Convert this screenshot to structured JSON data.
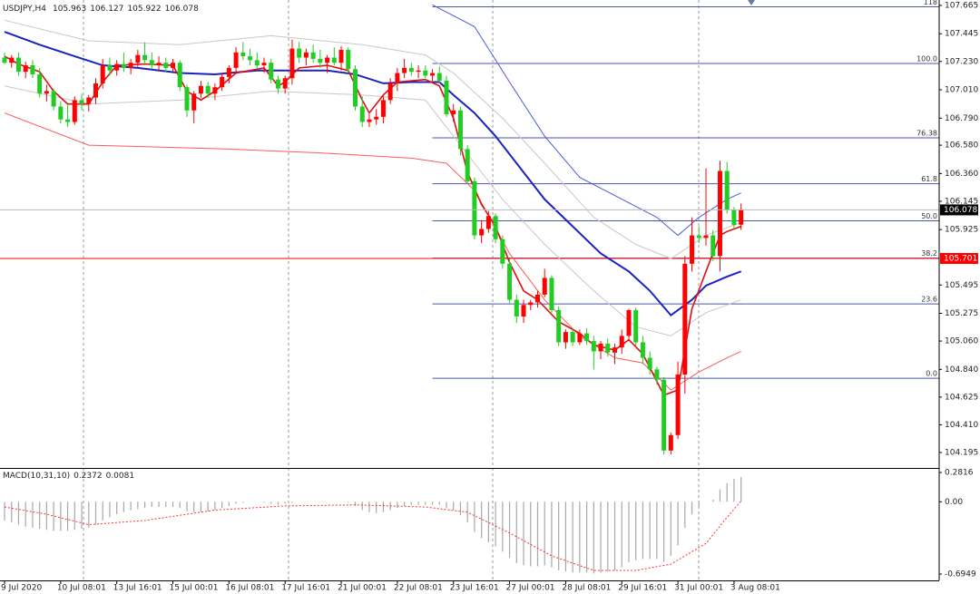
{
  "chart_data": [
    {
      "type": "candlestick",
      "title": "USDJPY,H4",
      "categories": [
        "9 Jul 2020",
        null,
        null,
        null,
        null,
        null,
        null,
        null,
        "10 Jul 08:01",
        null,
        null,
        null,
        null,
        null,
        null,
        null,
        "13 Jul 16:01",
        null,
        null,
        null,
        null,
        null,
        null,
        null,
        "15 Jul 00:01",
        null,
        null,
        null,
        null,
        null,
        null,
        null,
        "16 Jul 08:01",
        null,
        null,
        null,
        null,
        null,
        null,
        null,
        "17 Jul 16:01",
        null,
        null,
        null,
        null,
        null,
        null,
        null,
        "21 Jul 00:01",
        null,
        null,
        null,
        null,
        null,
        null,
        null,
        "22 Jul 08:01",
        null,
        null,
        null,
        null,
        null,
        null,
        null,
        "23 Jul 16:01",
        null,
        null,
        null,
        null,
        null,
        null,
        null,
        "27 Jul 00:01",
        null,
        null,
        null,
        null,
        null,
        null,
        null,
        "28 Jul 08:01",
        null,
        null,
        null,
        null,
        null,
        null,
        null,
        "29 Jul 16:01",
        null,
        null,
        null,
        null,
        null,
        null,
        null,
        "31 Jul 00:01",
        null,
        null,
        null,
        null,
        null,
        null,
        null,
        "3 Aug 08:01",
        null
      ],
      "open": [
        107.26,
        107.22,
        107.26,
        107.15,
        107.2,
        107.13,
        106.98,
        107.0,
        106.88,
        106.78,
        106.76,
        106.93,
        106.9,
        106.95,
        107.06,
        107.2,
        107.16,
        107.21,
        107.18,
        107.22,
        107.28,
        107.24,
        107.2,
        107.22,
        107.18,
        107.22,
        107.03,
        106.85,
        106.98,
        107.04,
        106.98,
        107.03,
        107.11,
        107.18,
        107.3,
        107.27,
        107.24,
        107.2,
        107.22,
        107.09,
        107.02,
        107.1,
        107.33,
        107.26,
        107.3,
        107.25,
        107.22,
        107.26,
        107.22,
        107.32,
        107.17,
        106.88,
        106.76,
        106.78,
        106.8,
        106.93,
        107.06,
        107.14,
        107.18,
        107.15,
        107.16,
        107.12,
        107.14,
        107.08,
        106.82,
        106.85,
        106.55,
        106.3,
        105.88,
        105.93,
        106.03,
        105.85,
        105.66,
        105.38,
        105.25,
        105.34,
        105.36,
        105.42,
        105.55,
        105.3,
        105.05,
        105.13,
        105.05,
        105.12,
        105.06,
        104.98,
        105.04,
        104.97,
        105.01,
        105.1,
        105.3,
        105.05,
        104.93,
        104.84,
        104.76,
        104.21,
        104.33,
        104.8,
        105.66,
        105.88,
        105.86,
        105.88,
        105.72,
        106.38,
        106.08,
        105.963
      ],
      "high": [
        107.3,
        107.28,
        107.3,
        107.23,
        107.24,
        107.18,
        107.05,
        107.02,
        106.92,
        106.9,
        106.96,
        106.98,
        106.97,
        107.1,
        107.25,
        107.26,
        107.24,
        107.3,
        107.25,
        107.32,
        107.38,
        107.3,
        107.27,
        107.26,
        107.25,
        107.24,
        107.05,
        107.0,
        107.08,
        107.07,
        107.06,
        107.14,
        107.2,
        107.34,
        107.38,
        107.33,
        107.3,
        107.26,
        107.25,
        107.12,
        107.12,
        107.4,
        107.38,
        107.33,
        107.36,
        107.32,
        107.28,
        107.34,
        107.35,
        107.34,
        107.2,
        106.96,
        106.82,
        106.86,
        106.96,
        107.1,
        107.18,
        107.25,
        107.22,
        107.2,
        107.2,
        107.17,
        107.19,
        107.12,
        106.9,
        106.88,
        106.58,
        106.33,
        106.0,
        106.07,
        106.05,
        105.88,
        105.7,
        105.42,
        105.38,
        105.38,
        105.45,
        105.62,
        105.57,
        105.33,
        105.15,
        105.16,
        105.15,
        105.16,
        105.1,
        105.06,
        105.08,
        105.04,
        105.15,
        105.31,
        105.32,
        105.1,
        104.98,
        104.86,
        104.78,
        104.35,
        104.9,
        105.72,
        106.02,
        105.95,
        106.4,
        105.92,
        106.46,
        106.45,
        106.1,
        106.127
      ],
      "low": [
        107.21,
        107.18,
        107.12,
        107.1,
        107.1,
        106.95,
        106.92,
        106.85,
        106.75,
        106.72,
        106.74,
        106.85,
        106.84,
        106.9,
        107.02,
        107.12,
        107.12,
        107.15,
        107.13,
        107.18,
        107.2,
        107.17,
        107.16,
        107.15,
        107.15,
        107.0,
        106.8,
        106.75,
        106.95,
        106.95,
        106.93,
        107.0,
        107.06,
        107.14,
        107.24,
        107.2,
        107.17,
        107.14,
        107.06,
        106.98,
        106.98,
        107.05,
        107.22,
        107.2,
        107.22,
        107.18,
        107.14,
        107.2,
        107.16,
        107.14,
        106.85,
        106.72,
        106.72,
        106.74,
        106.75,
        106.9,
        107.0,
        107.1,
        107.12,
        107.1,
        107.1,
        107.08,
        107.06,
        106.8,
        106.76,
        106.5,
        106.28,
        105.85,
        105.82,
        105.9,
        105.82,
        105.62,
        105.35,
        105.2,
        105.2,
        105.3,
        105.32,
        105.4,
        105.28,
        105.02,
        105.0,
        105.02,
        105.03,
        105.03,
        104.84,
        104.92,
        104.94,
        104.88,
        104.96,
        105.06,
        105.02,
        104.88,
        104.8,
        104.72,
        104.18,
        104.18,
        104.3,
        104.65,
        105.6,
        105.82,
        105.8,
        105.68,
        105.6,
        106.05,
        105.93,
        105.922
      ],
      "close": [
        107.22,
        107.26,
        107.15,
        107.2,
        107.13,
        106.98,
        107.0,
        106.88,
        106.78,
        106.76,
        106.93,
        106.9,
        106.95,
        107.06,
        107.2,
        107.16,
        107.21,
        107.18,
        107.22,
        107.28,
        107.24,
        107.2,
        107.22,
        107.18,
        107.22,
        107.03,
        106.85,
        106.98,
        107.04,
        106.98,
        107.03,
        107.11,
        107.18,
        107.3,
        107.27,
        107.24,
        107.2,
        107.22,
        107.09,
        107.02,
        107.1,
        107.33,
        107.26,
        107.3,
        107.25,
        107.22,
        107.26,
        107.22,
        107.32,
        107.17,
        106.88,
        106.76,
        106.78,
        106.8,
        106.93,
        107.06,
        107.14,
        107.18,
        107.15,
        107.16,
        107.12,
        107.14,
        107.08,
        106.82,
        106.85,
        106.55,
        106.3,
        105.88,
        105.93,
        106.03,
        105.85,
        105.66,
        105.38,
        105.25,
        105.34,
        105.36,
        105.42,
        105.55,
        105.3,
        105.05,
        105.13,
        105.05,
        105.12,
        105.06,
        104.98,
        105.04,
        104.97,
        105.01,
        105.1,
        105.3,
        105.05,
        104.93,
        104.84,
        104.76,
        104.21,
        104.33,
        104.8,
        105.66,
        105.88,
        105.86,
        105.88,
        105.72,
        106.38,
        106.08,
        105.96,
        106.078
      ],
      "up_color": "#ff0000",
      "down_color": "#22cc22",
      "lines": [
        {
          "color": "#c8c8c8",
          "width": 1,
          "x": [
            0,
            12,
            25,
            38,
            51,
            60,
            64,
            71,
            77,
            84,
            90,
            95,
            100,
            105
          ],
          "values": [
            107.55,
            107.39,
            107.36,
            107.43,
            107.36,
            107.28,
            107.14,
            106.79,
            106.44,
            106.02,
            105.81,
            105.7,
            105.88,
            105.98
          ]
        },
        {
          "color": "#c8c8c8",
          "width": 1,
          "x": [
            0,
            12,
            25,
            38,
            51,
            60,
            64,
            71,
            77,
            84,
            90,
            95,
            100,
            105
          ],
          "values": [
            107.04,
            106.9,
            106.93,
            107.0,
            106.97,
            106.93,
            106.65,
            106.16,
            105.81,
            105.45,
            105.17,
            105.1,
            105.28,
            105.38
          ]
        },
        {
          "color": "#4a5ae0",
          "width": 1,
          "x": [
            61,
            67,
            72,
            77,
            82,
            87,
            93,
            96,
            99,
            103,
            105
          ],
          "values": [
            107.67,
            107.5,
            107.07,
            106.65,
            106.33,
            106.19,
            106.02,
            105.88,
            106.02,
            106.16,
            106.21
          ]
        },
        {
          "color": "#ff5a5a",
          "width": 1,
          "x": [
            0,
            12,
            19,
            32,
            45,
            58,
            63,
            67,
            72,
            77,
            82,
            87,
            91,
            95,
            99,
            103,
            105
          ],
          "values": [
            106.83,
            106.58,
            106.57,
            106.55,
            106.52,
            106.48,
            106.44,
            106.23,
            105.74,
            105.38,
            105.1,
            104.93,
            104.89,
            104.68,
            104.82,
            104.93,
            104.98
          ]
        },
        {
          "color": "#1a22c0",
          "width": 2,
          "x": [
            0,
            5,
            10,
            14,
            19,
            25,
            30,
            36,
            41,
            46,
            50,
            54,
            58,
            62,
            64,
            67,
            70,
            74,
            77,
            81,
            85,
            89,
            92,
            95,
            98,
            100,
            103,
            105
          ],
          "values": [
            107.46,
            107.36,
            107.27,
            107.2,
            107.18,
            107.14,
            107.13,
            107.16,
            107.16,
            107.16,
            107.13,
            107.06,
            107.07,
            107.07,
            106.97,
            106.83,
            106.65,
            106.37,
            106.16,
            105.95,
            105.74,
            105.6,
            105.45,
            105.26,
            105.38,
            105.49,
            105.56,
            105.6
          ]
        },
        {
          "color": "#e01010",
          "width": 1.6,
          "x": [
            0,
            2,
            5,
            7,
            9,
            12,
            14,
            16,
            20,
            24,
            26,
            28,
            30,
            33,
            37,
            39,
            40,
            42,
            46,
            49,
            51,
            52,
            54,
            56,
            60,
            62,
            64,
            66,
            68,
            70,
            72,
            74,
            76,
            79,
            82,
            84,
            87,
            89,
            91,
            94,
            96,
            98,
            100,
            102,
            103,
            105
          ],
          "values": [
            107.27,
            107.21,
            107.15,
            107.0,
            106.9,
            106.9,
            107.07,
            107.2,
            107.21,
            107.2,
            107.0,
            106.93,
            107.0,
            107.14,
            107.18,
            107.04,
            107.07,
            107.18,
            107.2,
            107.16,
            106.93,
            106.83,
            106.97,
            107.07,
            107.09,
            107.04,
            106.79,
            106.37,
            106.12,
            105.95,
            105.67,
            105.45,
            105.38,
            105.21,
            105.12,
            105.03,
            104.99,
            105.07,
            104.96,
            104.64,
            104.68,
            105.31,
            105.6,
            105.88,
            105.91,
            105.95
          ]
        }
      ],
      "fibonacci": {
        "start": 61,
        "color": "#4a56a8",
        "levels": [
          {
            "value": 107.654,
            "label": "118"
          },
          {
            "value": 107.214,
            "label": "100.0"
          },
          {
            "value": 106.637,
            "label": "76.38"
          },
          {
            "value": 106.281,
            "label": "61.8"
          },
          {
            "value": 105.993,
            "label": "50.0"
          },
          {
            "value": 105.704,
            "label": "38.2"
          },
          {
            "value": 105.348,
            "label": "23.6"
          },
          {
            "value": 104.771,
            "label": "0.0"
          }
        ]
      },
      "hlines": [
        {
          "value": 105.701,
          "color": "#ff0000"
        }
      ],
      "ylim": [
        104.082,
        107.707
      ],
      "yticks": [
        107.665,
        107.445,
        {
          "value": 107.23,
          "label": "107.230"
        },
        {
          "value": 107.01,
          "label": "107.010"
        },
        {
          "value": 106.79,
          "label": "106.790"
        },
        {
          "value": 106.58,
          "label": "106.580"
        },
        {
          "value": 106.36,
          "label": "106.360"
        },
        106.145,
        105.925,
        105.495,
        105.275,
        {
          "value": 105.06,
          "label": "105.060"
        },
        {
          "value": 104.84,
          "label": "104.840"
        },
        104.625,
        {
          "value": 104.41,
          "label": "104.410"
        },
        104.195
      ]
    },
    {
      "type": "macd",
      "title": "MACD(10,31,10)",
      "color": "#a8a8a8",
      "values": [
        -0.18,
        -0.2,
        -0.22,
        -0.24,
        -0.25,
        -0.26,
        -0.27,
        -0.28,
        -0.28,
        -0.28,
        -0.27,
        -0.26,
        -0.25,
        -0.22,
        -0.18,
        -0.15,
        -0.12,
        -0.1,
        -0.08,
        -0.07,
        -0.06,
        -0.05,
        -0.05,
        -0.05,
        -0.05,
        -0.06,
        -0.09,
        -0.1,
        -0.1,
        -0.09,
        -0.08,
        -0.06,
        -0.04,
        -0.02,
        -0.01,
        0.0,
        0.0,
        -0.01,
        -0.02,
        -0.03,
        -0.02,
        -0.01,
        0.0,
        0.0,
        0.0,
        0.0,
        0.0,
        0.0,
        0.0,
        -0.01,
        -0.04,
        -0.08,
        -0.1,
        -0.11,
        -0.1,
        -0.08,
        -0.06,
        -0.04,
        -0.03,
        -0.03,
        -0.03,
        -0.03,
        -0.03,
        -0.06,
        -0.08,
        -0.13,
        -0.2,
        -0.29,
        -0.35,
        -0.39,
        -0.43,
        -0.48,
        -0.54,
        -0.59,
        -0.61,
        -0.62,
        -0.62,
        -0.61,
        -0.63,
        -0.66,
        -0.67,
        -0.68,
        -0.68,
        -0.68,
        -0.69,
        -0.68,
        -0.67,
        -0.66,
        -0.63,
        -0.58,
        -0.56,
        -0.55,
        -0.55,
        -0.55,
        -0.58,
        -0.52,
        -0.42,
        -0.25,
        -0.12,
        -0.05,
        0.0,
        0.02,
        0.12,
        0.18,
        0.22,
        0.2372
      ],
      "signal": {
        "color": "#ff3030",
        "dash": "2 2",
        "x": [
          0,
          6,
          12,
          20,
          30,
          40,
          50,
          60,
          66,
          72,
          78,
          84,
          90,
          95,
          100,
          103,
          105
        ],
        "values": [
          -0.05,
          -0.12,
          -0.22,
          -0.18,
          -0.08,
          -0.04,
          -0.03,
          -0.05,
          -0.1,
          -0.3,
          -0.52,
          -0.66,
          -0.66,
          -0.6,
          -0.4,
          -0.15,
          0.0081
        ]
      },
      "ylim": [
        -0.756,
        0.3165
      ],
      "yticks": [
        0.2816,
        {
          "value": 0,
          "label": "0.00"
        },
        -0.6949
      ]
    }
  ]
}
